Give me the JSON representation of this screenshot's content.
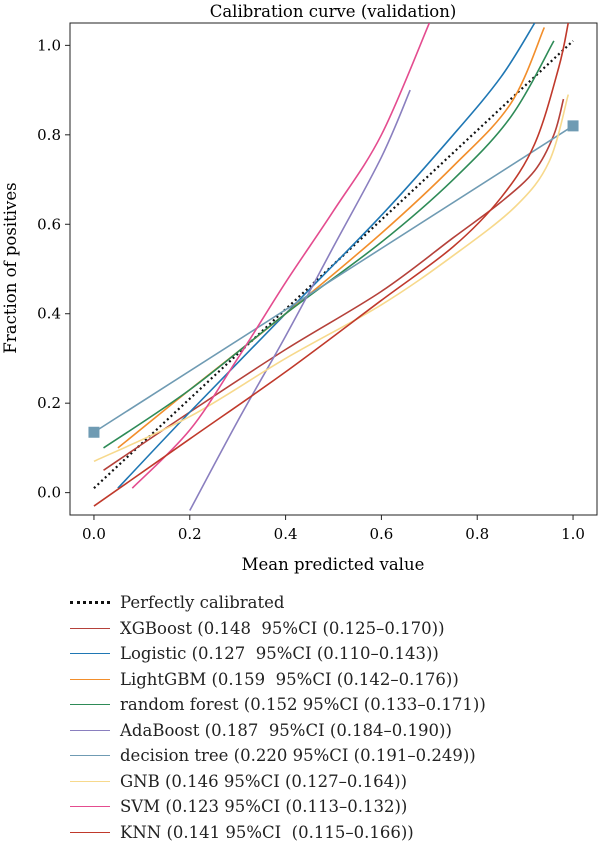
{
  "chart_data": {
    "type": "line",
    "title": "Calibration curve (validation)",
    "xlabel": "Mean predicted value",
    "ylabel": "Fraction of positives",
    "xlim": [
      -0.05,
      1.05
    ],
    "ylim": [
      -0.05,
      1.05
    ],
    "xticks": [
      "0.0",
      "0.2",
      "0.4",
      "0.6",
      "0.8",
      "1.0"
    ],
    "yticks": [
      "0.0",
      "0.2",
      "0.4",
      "0.6",
      "0.8",
      "1.0"
    ],
    "grid": false,
    "legend_position": "below plot",
    "series": [
      {
        "name": "Perfectly calibrated",
        "style": "dotted",
        "color": "#111111",
        "x": [
          0.0,
          1.0
        ],
        "y": [
          0.01,
          1.01
        ]
      },
      {
        "name": "XGBoost (0.148  95%CI (0.125–0.170))",
        "color": "#b5413a",
        "x": [
          0.02,
          0.2,
          0.4,
          0.6,
          0.75,
          0.85,
          0.92,
          0.96,
          0.98
        ],
        "y": [
          0.05,
          0.18,
          0.32,
          0.45,
          0.57,
          0.65,
          0.72,
          0.8,
          0.88
        ]
      },
      {
        "name": "Logistic (0.127  95%CI (0.110–0.143))",
        "color": "#1f77b4",
        "x": [
          0.05,
          0.2,
          0.4,
          0.6,
          0.75,
          0.85,
          0.92
        ],
        "y": [
          0.01,
          0.18,
          0.4,
          0.62,
          0.8,
          0.93,
          1.05
        ]
      },
      {
        "name": "LightGBM (0.159  95%CI (0.142–0.176))",
        "color": "#f28e2b",
        "x": [
          0.05,
          0.2,
          0.4,
          0.6,
          0.75,
          0.87,
          0.94
        ],
        "y": [
          0.1,
          0.23,
          0.4,
          0.58,
          0.73,
          0.87,
          1.04
        ]
      },
      {
        "name": "random forest (0.152 95%CI (0.133–0.171))",
        "color": "#2e8b57",
        "x": [
          0.02,
          0.2,
          0.4,
          0.6,
          0.75,
          0.87,
          0.96
        ],
        "y": [
          0.1,
          0.23,
          0.4,
          0.56,
          0.7,
          0.84,
          1.01
        ]
      },
      {
        "name": "AdaBoost (0.187  95%CI (0.184–0.190))",
        "color": "#8a7fbf",
        "x": [
          0.2,
          0.3,
          0.4,
          0.5,
          0.6,
          0.66
        ],
        "y": [
          -0.04,
          0.16,
          0.35,
          0.55,
          0.75,
          0.9
        ]
      },
      {
        "name": "decision tree (0.220 95%CI (0.191–0.249))",
        "color": "#6f9bb3",
        "x": [
          0.0,
          1.0
        ],
        "y": [
          0.135,
          0.82
        ],
        "markers": true
      },
      {
        "name": "GNB (0.146 95%CI (0.127–0.164))",
        "color": "#f7d98c",
        "x": [
          0.0,
          0.2,
          0.4,
          0.6,
          0.75,
          0.88,
          0.95,
          0.99
        ],
        "y": [
          0.07,
          0.17,
          0.3,
          0.42,
          0.53,
          0.64,
          0.74,
          0.89
        ]
      },
      {
        "name": "SVM (0.123 95%CI (0.113–0.132))",
        "color": "#e44c8f",
        "x": [
          0.08,
          0.2,
          0.3,
          0.4,
          0.5,
          0.6,
          0.7
        ],
        "y": [
          0.01,
          0.14,
          0.3,
          0.47,
          0.63,
          0.8,
          1.05
        ]
      },
      {
        "name": "KNN (0.141 95%CI  (0.115–0.166))",
        "color": "#c0392b",
        "x": [
          0.0,
          0.2,
          0.4,
          0.6,
          0.75,
          0.85,
          0.92,
          0.97,
          0.99
        ],
        "y": [
          -0.03,
          0.12,
          0.27,
          0.43,
          0.55,
          0.66,
          0.78,
          0.95,
          1.05
        ]
      }
    ]
  }
}
